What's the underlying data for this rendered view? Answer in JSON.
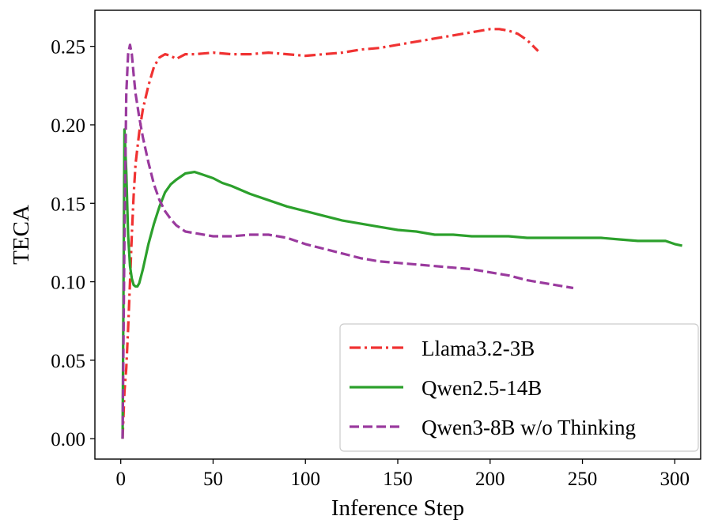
{
  "chart_data": {
    "type": "line",
    "title": "",
    "xlabel": "Inference Step",
    "ylabel": "TECA",
    "xlim": [
      -14,
      314
    ],
    "ylim": [
      -0.013,
      0.273
    ],
    "xticks": [
      0,
      50,
      100,
      150,
      200,
      250,
      300
    ],
    "yticks": [
      0.0,
      0.05,
      0.1,
      0.15,
      0.2,
      0.25
    ],
    "xtick_labels": [
      "0",
      "50",
      "100",
      "150",
      "200",
      "250",
      "300"
    ],
    "ytick_labels": [
      "0.00",
      "0.05",
      "0.10",
      "0.15",
      "0.20",
      "0.25"
    ],
    "grid": false,
    "legend_position": "lower-right",
    "series": [
      {
        "name": "Llama3.2-3B",
        "color": "#f03232",
        "style": "dashdot",
        "x": [
          1,
          2,
          3,
          4,
          5,
          6,
          7,
          8,
          10,
          12,
          15,
          18,
          21,
          24,
          27,
          30,
          35,
          40,
          50,
          60,
          70,
          80,
          90,
          100,
          110,
          120,
          130,
          140,
          150,
          160,
          170,
          180,
          190,
          200,
          205,
          210,
          215,
          220,
          226
        ],
        "values": [
          0.0,
          0.03,
          0.045,
          0.07,
          0.1,
          0.13,
          0.155,
          0.175,
          0.195,
          0.21,
          0.225,
          0.237,
          0.243,
          0.245,
          0.244,
          0.242,
          0.245,
          0.245,
          0.246,
          0.245,
          0.245,
          0.246,
          0.245,
          0.244,
          0.245,
          0.246,
          0.248,
          0.249,
          0.251,
          0.253,
          0.255,
          0.257,
          0.259,
          0.261,
          0.261,
          0.26,
          0.258,
          0.254,
          0.247
        ]
      },
      {
        "name": "Qwen2.5-14B",
        "color": "#2ca02c",
        "style": "solid",
        "x": [
          1,
          2,
          3,
          4,
          5,
          6,
          7,
          8,
          9,
          10,
          12,
          15,
          18,
          21,
          24,
          27,
          30,
          35,
          40,
          45,
          50,
          55,
          60,
          70,
          80,
          90,
          100,
          110,
          120,
          130,
          140,
          150,
          160,
          170,
          180,
          190,
          200,
          210,
          220,
          230,
          240,
          250,
          260,
          270,
          280,
          290,
          295,
          300,
          304
        ],
        "values": [
          0.0,
          0.197,
          0.17,
          0.13,
          0.11,
          0.102,
          0.098,
          0.097,
          0.097,
          0.099,
          0.108,
          0.124,
          0.137,
          0.148,
          0.157,
          0.162,
          0.165,
          0.169,
          0.17,
          0.168,
          0.166,
          0.163,
          0.161,
          0.156,
          0.152,
          0.148,
          0.145,
          0.142,
          0.139,
          0.137,
          0.135,
          0.133,
          0.132,
          0.13,
          0.13,
          0.129,
          0.129,
          0.129,
          0.128,
          0.128,
          0.128,
          0.128,
          0.128,
          0.127,
          0.126,
          0.126,
          0.126,
          0.124,
          0.123
        ]
      },
      {
        "name": "Qwen3-8B w/o Thinking",
        "color": "#9a3a9e",
        "style": "dashed",
        "x": [
          1,
          2,
          3,
          4,
          5,
          6,
          7,
          8,
          10,
          12,
          15,
          18,
          21,
          24,
          27,
          30,
          35,
          40,
          45,
          50,
          60,
          70,
          80,
          90,
          100,
          110,
          120,
          130,
          140,
          150,
          160,
          170,
          180,
          190,
          200,
          210,
          220,
          230,
          240,
          245
        ],
        "values": [
          0.0,
          0.13,
          0.22,
          0.245,
          0.251,
          0.245,
          0.232,
          0.22,
          0.205,
          0.192,
          0.176,
          0.162,
          0.152,
          0.145,
          0.14,
          0.136,
          0.132,
          0.131,
          0.13,
          0.129,
          0.129,
          0.13,
          0.13,
          0.128,
          0.124,
          0.121,
          0.118,
          0.115,
          0.113,
          0.112,
          0.111,
          0.11,
          0.109,
          0.108,
          0.106,
          0.104,
          0.101,
          0.099,
          0.097,
          0.096
        ]
      }
    ]
  }
}
